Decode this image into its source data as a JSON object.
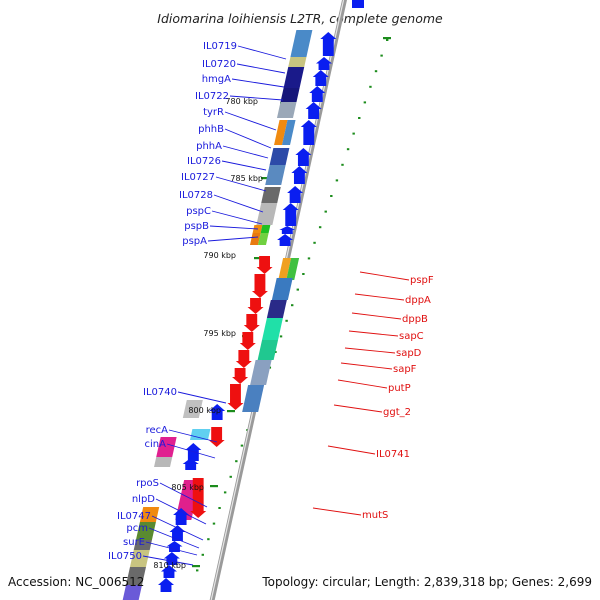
{
  "title": "Idiomarina loihiensis L2TR, complete genome",
  "footer": {
    "accession": "Accession: NC_006512",
    "topology": "Topology: circular; Length: 2,839,318 bp; Genes: 2,699"
  },
  "kbp_marks": [
    "780 kbp",
    "785 kbp",
    "790 kbp",
    "795 kbp",
    "800 kbp",
    "805 kbp",
    "810 kbp"
  ],
  "forward_genes": [
    "IL0719",
    "IL0720",
    "hmgA",
    "IL0722",
    "tyrR",
    "phhB",
    "phhA",
    "IL0726",
    "IL0727",
    "IL0728",
    "pspC",
    "pspB",
    "pspA",
    "IL0740",
    "recA",
    "cinA",
    "rpoS",
    "nlpD",
    "IL0747",
    "pcm",
    "surE",
    "IL0750"
  ],
  "reverse_genes": [
    "pspF",
    "dppA",
    "dppB",
    "sapC",
    "sapD",
    "sapF",
    "putP",
    "ggt_2",
    "IL0741",
    "mutS"
  ],
  "colors": {
    "forward_label": "#1a1adc",
    "reverse_label": "#e01010",
    "forward_arrow": "#0a1ef0",
    "reverse_arrow": "#ee1010",
    "backbone": "#9a9a9a",
    "tick": "#1c8c1c"
  }
}
